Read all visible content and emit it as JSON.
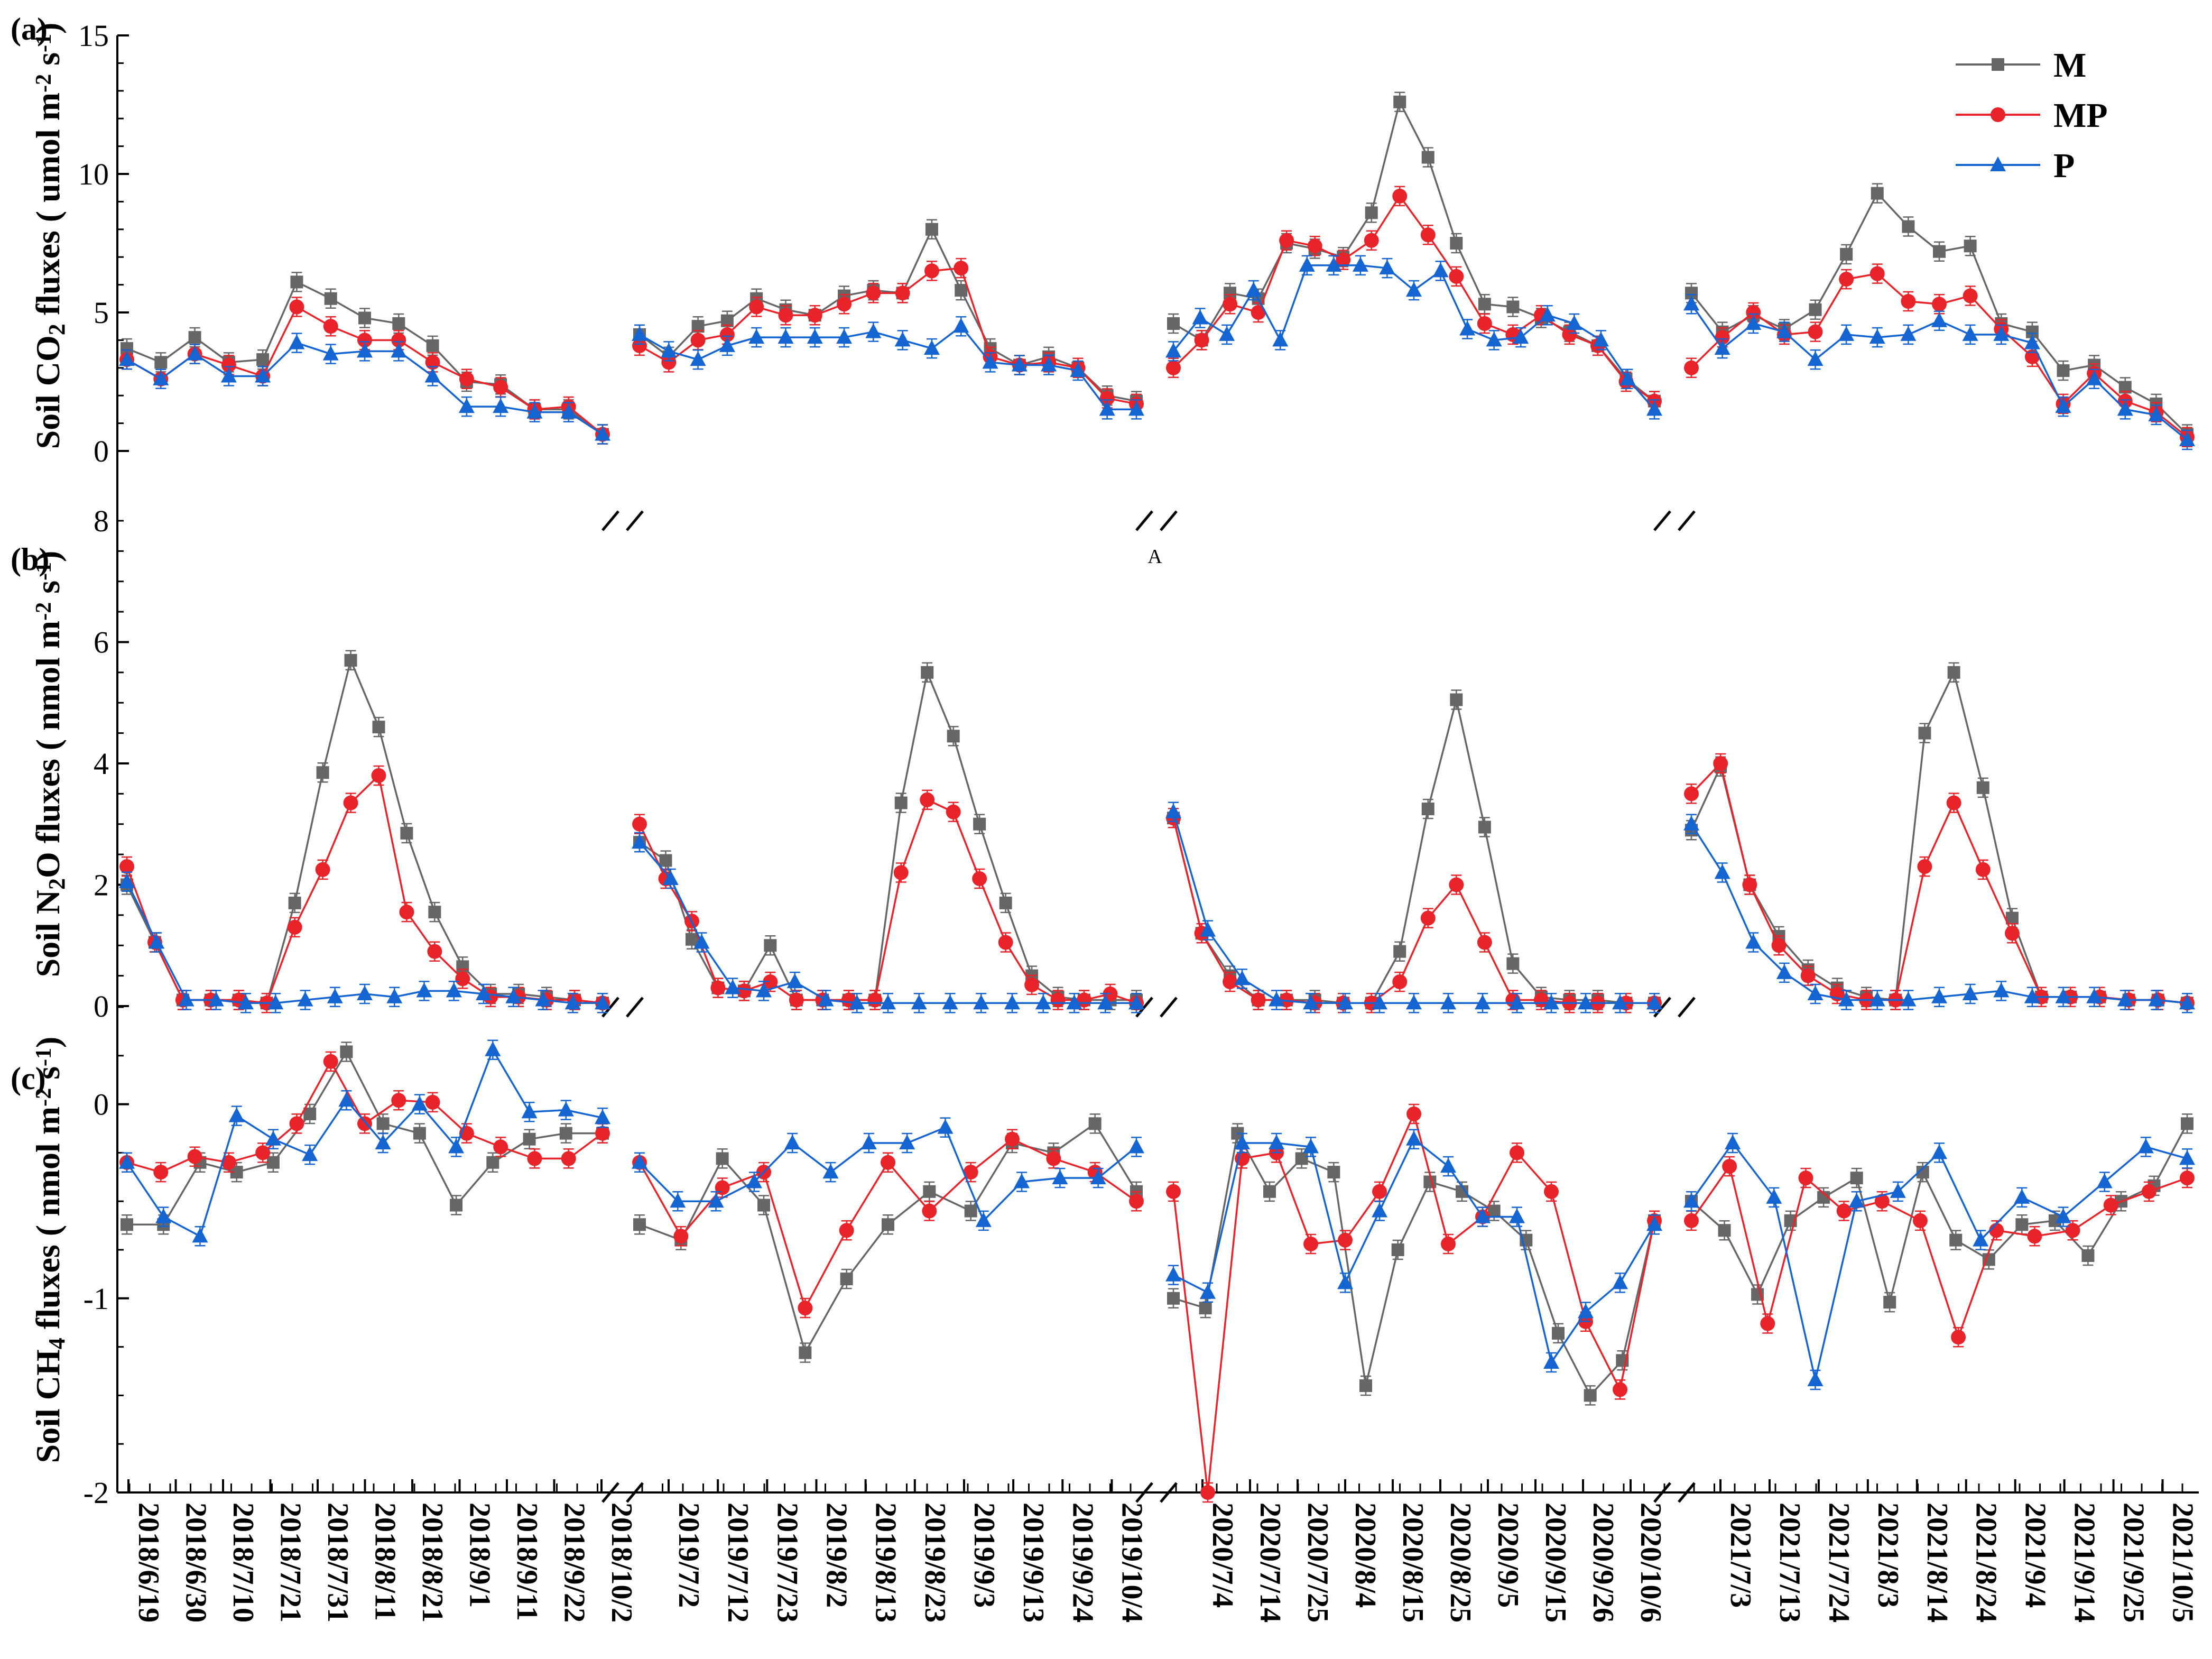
{
  "colors": {
    "M": "#666666",
    "MP": "#e8232a",
    "P": "#1464d2"
  },
  "chart_data": {
    "type": "line",
    "legend": {
      "placement": "top-right",
      "entries": [
        "M",
        "MP",
        "P"
      ]
    },
    "x_tick_labels": [
      [
        "2018/6/19",
        "2018/6/30",
        "2018/7/10",
        "2018/7/21",
        "2018/7/31",
        "2018/8/11",
        "2018/8/21",
        "2018/9/1",
        "2018/9/11",
        "2018/9/22",
        "2018/10/2"
      ],
      [
        "2019/7/2",
        "2019/7/12",
        "2019/7/23",
        "2019/8/2",
        "2019/8/13",
        "2019/8/23",
        "2019/9/3",
        "2019/9/13",
        "2019/9/24",
        "2019/10/4"
      ],
      [
        "2020/7/4",
        "2020/7/14",
        "2020/7/25",
        "2020/8/4",
        "2020/8/15",
        "2020/8/25",
        "2020/9/5",
        "2020/9/15",
        "2020/9/26",
        "2020/10/6"
      ],
      [
        "2021/7/3",
        "2021/7/13",
        "2021/7/24",
        "2021/8/3",
        "2021/8/14",
        "2021/8/24",
        "2021/9/4",
        "2021/9/14",
        "2021/9/25",
        "2021/10/5"
      ]
    ],
    "panels": [
      {
        "tag": "(a)",
        "ylabel_pre": "Soil CO",
        "ylabel_sub": "2",
        "ylabel_mid": " fluxes ( umol m",
        "ylabel_sup1": "-2",
        "ylabel_mid2": " s",
        "ylabel_sup2": "-1",
        "ylabel_post": ")",
        "ylim": [
          0,
          15
        ],
        "yticks": [
          "0",
          "5",
          "10",
          "15"
        ],
        "extra_top_label": "8",
        "series": {
          "M": [
            [
              [
                3.7,
                3.2,
                4.1,
                3.2,
                3.3,
                6.1,
                5.5,
                4.8,
                4.6,
                3.8,
                2.5,
                2.4,
                1.5,
                1.5,
                0.6
              ]
            ],
            [
              [
                4.2,
                3.4,
                4.5,
                4.7,
                5.5,
                5.1,
                4.9,
                5.6,
                5.8,
                5.7,
                8.0,
                5.8,
                3.7,
                3.1,
                3.4,
                3.0,
                2.0,
                1.8
              ]
            ],
            [
              [
                4.6,
                4.0,
                5.7,
                5.5,
                7.5,
                7.3,
                7.0,
                8.6,
                12.6,
                10.6,
                7.5,
                5.3,
                5.2,
                4.8,
                4.3,
                3.8,
                2.6,
                1.8
              ]
            ],
            [
              [
                5.7,
                4.3,
                4.9,
                4.4,
                5.1,
                7.1,
                9.3,
                8.1,
                7.2,
                7.4,
                4.6,
                4.3,
                2.9,
                3.1,
                2.3,
                1.7,
                0.6
              ]
            ]
          ],
          "MP": [
            [
              [
                3.3,
                2.6,
                3.5,
                3.1,
                2.7,
                5.2,
                4.5,
                4.0,
                4.0,
                3.2,
                2.6,
                2.3,
                1.5,
                1.6,
                0.6
              ]
            ],
            [
              [
                3.8,
                3.2,
                4.0,
                4.2,
                5.2,
                4.9,
                4.9,
                5.3,
                5.7,
                5.7,
                6.5,
                6.6,
                3.4,
                3.1,
                3.2,
                3.0,
                1.9,
                1.7
              ]
            ],
            [
              [
                3.0,
                4.0,
                5.3,
                5.0,
                7.6,
                7.4,
                6.9,
                7.6,
                9.2,
                7.8,
                6.3,
                4.6,
                4.2,
                4.9,
                4.2,
                3.8,
                2.5,
                1.8
              ]
            ],
            [
              [
                3.0,
                4.1,
                5.0,
                4.2,
                4.3,
                6.2,
                6.4,
                5.4,
                5.3,
                5.6,
                4.4,
                3.4,
                1.7,
                2.8,
                1.8,
                1.4,
                0.5
              ]
            ]
          ],
          "P": [
            [
              [
                3.3,
                2.6,
                3.5,
                2.7,
                2.7,
                3.9,
                3.5,
                3.6,
                3.6,
                2.7,
                1.6,
                1.6,
                1.4,
                1.4,
                0.6
              ]
            ],
            [
              [
                4.2,
                3.6,
                3.3,
                3.8,
                4.1,
                4.1,
                4.1,
                4.1,
                4.3,
                4.0,
                3.7,
                4.5,
                3.2,
                3.1,
                3.1,
                2.9,
                1.5,
                1.5
              ]
            ],
            [
              [
                3.6,
                4.8,
                4.2,
                5.8,
                4.0,
                6.7,
                6.7,
                6.7,
                6.6,
                5.8,
                6.5,
                4.4,
                4.0,
                4.1,
                4.9,
                4.6,
                4.0,
                2.6,
                1.5
              ]
            ],
            [
              [
                5.3,
                3.7,
                4.6,
                4.3,
                3.3,
                4.2,
                4.1,
                4.2,
                4.7,
                4.2,
                4.2,
                3.9,
                1.6,
                2.6,
                1.5,
                1.3,
                0.4
              ]
            ]
          ]
        }
      },
      {
        "tag": "(b)",
        "ylabel_pre": "Soil N",
        "ylabel_sub": "2",
        "ylabel_mid": "O fluxes ( nmol m",
        "ylabel_sup1": "-2",
        "ylabel_mid2": " s",
        "ylabel_sup2": "-1",
        "ylabel_post": ")",
        "ylim": [
          0,
          8
        ],
        "yticks": [
          "0",
          "2",
          "4",
          "6"
        ],
        "series": {
          "M": [
            [
              [
                2.0,
                1.05,
                0.1,
                0.1,
                0.1,
                0.05,
                1.7,
                3.85,
                5.7,
                4.6,
                2.85,
                1.55,
                0.65,
                0.2,
                0.2,
                0.15,
                0.1,
                0.05
              ]
            ],
            [
              [
                2.7,
                2.4,
                1.1,
                0.3,
                0.25,
                1.0,
                0.1,
                0.1,
                0.1,
                0.1,
                3.35,
                5.5,
                4.45,
                3.0,
                1.7,
                0.5,
                0.15,
                0.1,
                0.1,
                0.1
              ]
            ],
            [
              [
                3.1,
                1.2,
                0.5,
                0.1,
                0.1,
                0.1,
                0.05,
                0.05,
                0.9,
                3.25,
                5.05,
                2.95,
                0.7,
                0.15,
                0.1,
                0.1,
                0.05,
                0.05
              ]
            ],
            [
              [
                2.9,
                3.95,
                2.0,
                1.15,
                0.6,
                0.3,
                0.15,
                0.1,
                4.5,
                5.5,
                3.6,
                1.45,
                0.15,
                0.15,
                0.15,
                0.1,
                0.1,
                0.05
              ]
            ]
          ],
          "MP": [
            [
              [
                2.3,
                1.05,
                0.1,
                0.1,
                0.1,
                0.05,
                1.3,
                2.25,
                3.35,
                3.8,
                1.55,
                0.9,
                0.45,
                0.15,
                0.15,
                0.1,
                0.1,
                0.05
              ]
            ],
            [
              [
                3.0,
                2.1,
                1.4,
                0.3,
                0.25,
                0.4,
                0.1,
                0.1,
                0.1,
                0.1,
                2.2,
                3.4,
                3.2,
                2.1,
                1.05,
                0.35,
                0.1,
                0.1,
                0.2,
                0.05
              ]
            ],
            [
              [
                3.1,
                1.2,
                0.4,
                0.1,
                0.1,
                0.05,
                0.05,
                0.05,
                0.4,
                1.45,
                2.0,
                1.05,
                0.1,
                0.1,
                0.05,
                0.05,
                0.05,
                0.05
              ]
            ],
            [
              [
                3.5,
                4.0,
                2.0,
                1.0,
                0.5,
                0.2,
                0.1,
                0.1,
                2.3,
                3.35,
                2.25,
                1.2,
                0.15,
                0.15,
                0.15,
                0.1,
                0.1,
                0.05
              ]
            ]
          ],
          "P": [
            [
              [
                2.05,
                1.05,
                0.1,
                0.1,
                0.05,
                0.05,
                0.1,
                0.15,
                0.2,
                0.15,
                0.25,
                0.25,
                0.2,
                0.15,
                0.1,
                0.05,
                0.05
              ]
            ],
            [
              [
                2.7,
                2.1,
                1.05,
                0.3,
                0.25,
                0.4,
                0.1,
                0.05,
                0.05,
                0.05,
                0.05,
                0.05,
                0.05,
                0.05,
                0.05,
                0.05,
                0.05
              ]
            ],
            [
              [
                3.2,
                1.25,
                0.45,
                0.1,
                0.05,
                0.05,
                0.05,
                0.05,
                0.05,
                0.05,
                0.05,
                0.05,
                0.05,
                0.05,
                0.05
              ]
            ],
            [
              [
                3.0,
                2.2,
                1.05,
                0.55,
                0.2,
                0.1,
                0.1,
                0.1,
                0.15,
                0.2,
                0.25,
                0.15,
                0.15,
                0.15,
                0.1,
                0.1,
                0.05
              ]
            ]
          ]
        }
      },
      {
        "tag": "(c)",
        "ylabel_pre": "Soil CH",
        "ylabel_sub": "4",
        "ylabel_mid": " fluxes ( nmol m",
        "ylabel_sup1": "-2",
        "ylabel_mid2": " s",
        "ylabel_sup2": "-1",
        "ylabel_post": ")",
        "ylim": [
          -2,
          0.5
        ],
        "yticks": [
          "-2",
          "-1",
          "0"
        ],
        "series": {
          "M": [
            [
              [
                -0.62,
                -0.62,
                -0.3,
                -0.35,
                -0.3,
                -0.05,
                0.27,
                -0.1,
                -0.15,
                -0.52,
                -0.3,
                -0.18,
                -0.15,
                -0.15
              ]
            ],
            [
              [
                -0.62,
                -0.7,
                -0.28,
                -0.52,
                -1.28,
                -0.9,
                -0.62,
                -0.45,
                -0.55,
                -0.2,
                -0.25,
                -0.1,
                -0.45
              ]
            ],
            [
              [
                -1.0,
                -1.05,
                -0.15,
                -0.45,
                -0.28,
                -0.35,
                -1.45,
                -0.75,
                -0.4,
                -0.45,
                -0.55,
                -0.7,
                -1.18,
                -1.5,
                -1.32,
                -0.6
              ]
            ],
            [
              [
                -0.5,
                -0.65,
                -0.98,
                -0.6,
                -0.48,
                -0.38,
                -1.02,
                -0.35,
                -0.7,
                -0.8,
                -0.62,
                -0.6,
                -0.78,
                -0.5,
                -0.42,
                -0.1
              ]
            ]
          ],
          "MP": [
            [
              [
                -0.3,
                -0.35,
                -0.27,
                -0.3,
                -0.25,
                -0.1,
                0.22,
                -0.1,
                0.02,
                0.01,
                -0.15,
                -0.22,
                -0.28,
                -0.28,
                -0.15
              ]
            ],
            [
              [
                -0.3,
                -0.68,
                -0.43,
                -0.35,
                -1.05,
                -0.65,
                -0.3,
                -0.55,
                -0.35,
                -0.18,
                -0.28,
                -0.35,
                -0.5
              ]
            ],
            [
              [
                -0.45,
                -2.0,
                -0.28,
                -0.25,
                -0.72,
                -0.7,
                -0.45,
                -0.05,
                -0.72,
                -0.58,
                -0.25,
                -0.45,
                -1.12,
                -1.47,
                -0.6
              ]
            ],
            [
              [
                -0.6,
                -0.32,
                -1.13,
                -0.38,
                -0.55,
                -0.5,
                -0.6,
                -1.2,
                -0.65,
                -0.68,
                -0.65,
                -0.52,
                -0.45,
                -0.38
              ]
            ]
          ],
          "P": [
            [
              [
                -0.3,
                -0.58,
                -0.68,
                -0.06,
                -0.18,
                -0.26,
                0.02,
                -0.2,
                0.0,
                -0.22,
                0.28,
                -0.04,
                -0.03,
                -0.07
              ]
            ],
            [
              [
                -0.3,
                -0.5,
                -0.5,
                -0.4,
                -0.2,
                -0.35,
                -0.2,
                -0.2,
                -0.12,
                -0.6,
                -0.4,
                -0.38,
                -0.38,
                -0.22
              ]
            ],
            [
              [
                -0.88,
                -0.97,
                -0.2,
                -0.2,
                -0.22,
                -0.92,
                -0.55,
                -0.18,
                -0.32,
                -0.58,
                -0.58,
                -1.33,
                -1.07,
                -0.92,
                -0.62
              ]
            ],
            [
              [
                -0.5,
                -0.2,
                -0.48,
                -1.42,
                -0.5,
                -0.45,
                -0.25,
                -0.7,
                -0.48,
                -0.58,
                -0.4,
                -0.22,
                -0.28
              ]
            ]
          ]
        }
      }
    ]
  },
  "stray_mark": "A"
}
